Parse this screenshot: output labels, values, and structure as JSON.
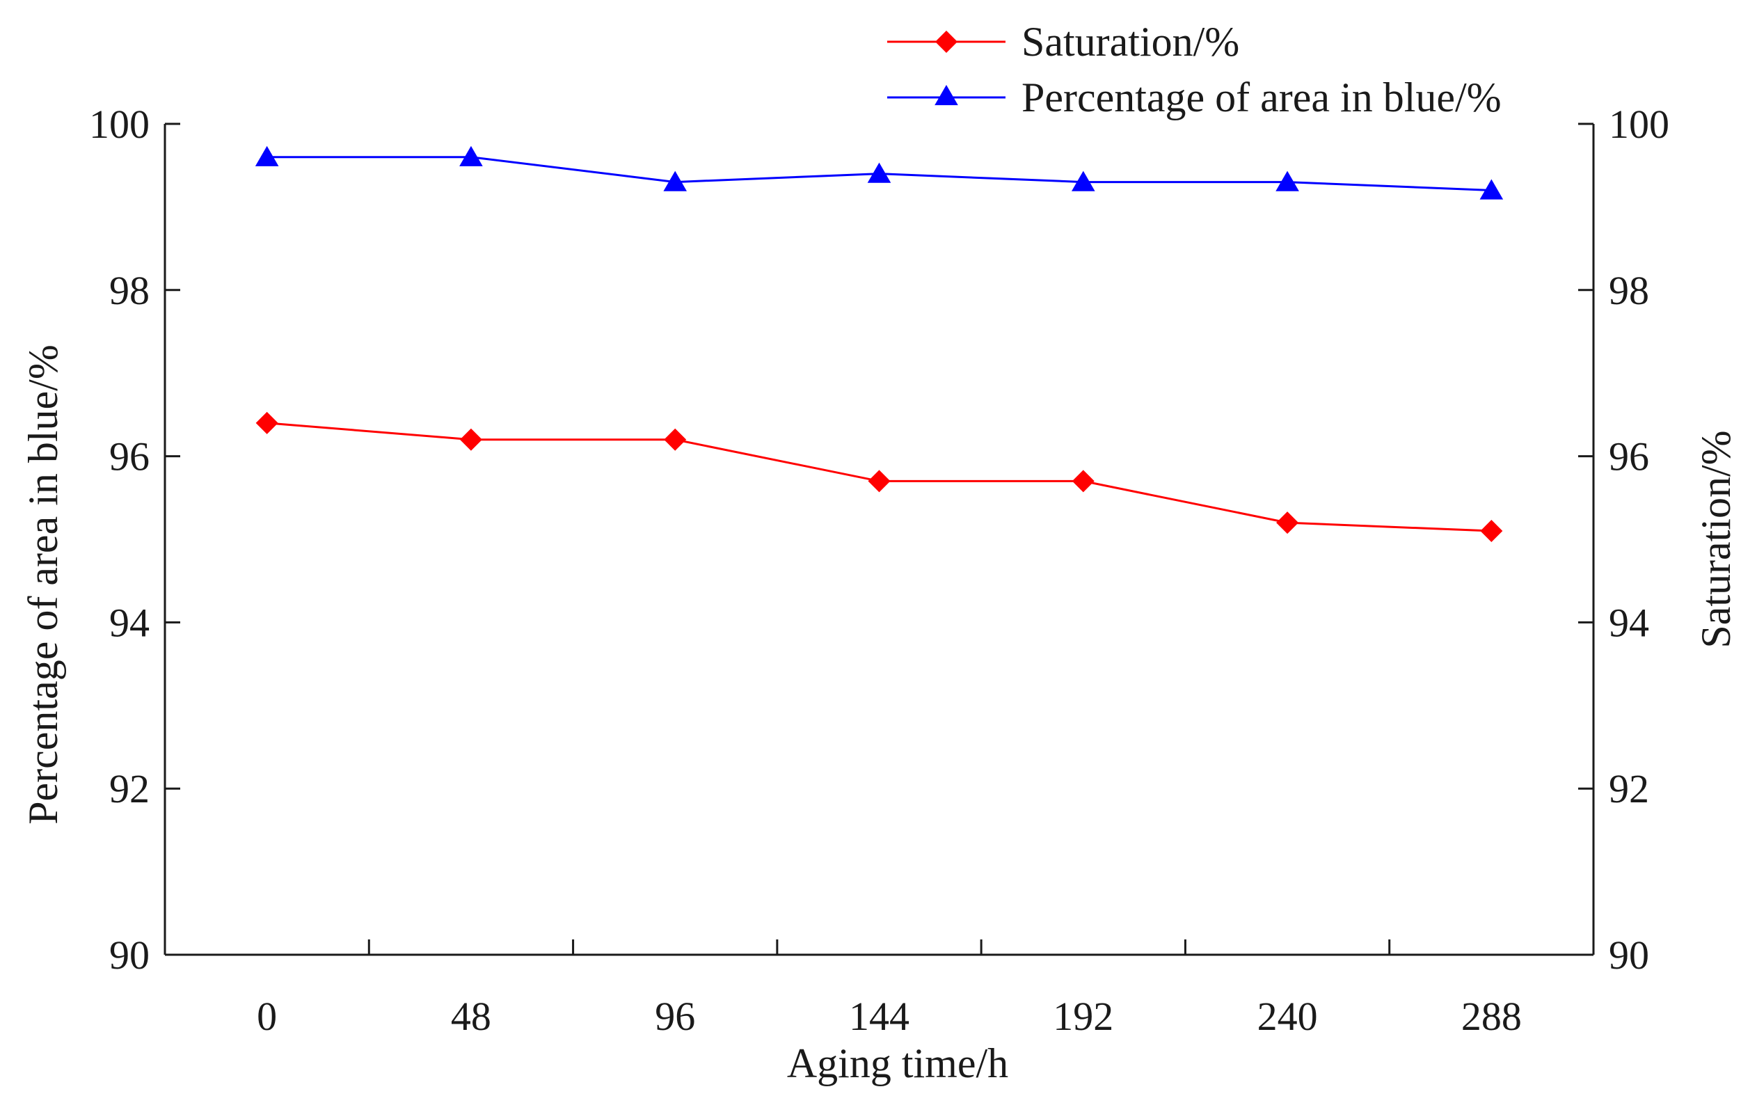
{
  "chart_data": {
    "type": "line",
    "title": "",
    "xlabel": "Aging time/h",
    "ylabel_left": "Percentage of area in blue/%",
    "ylabel_right": "Saturation/%",
    "categories": [
      "0",
      "48",
      "96",
      "144",
      "192",
      "240",
      "288"
    ],
    "ylim_left": [
      90,
      100
    ],
    "ylim_right": [
      90,
      100
    ],
    "yticks_left": [
      "90",
      "92",
      "94",
      "96",
      "98",
      "100"
    ],
    "yticks_right": [
      "90",
      "92",
      "94",
      "96",
      "98",
      "100"
    ],
    "grid": false,
    "legend_position": "top-right",
    "series": [
      {
        "name": "Saturation/%",
        "color": "#ff0000",
        "marker": "diamond",
        "values": [
          96.4,
          96.2,
          96.2,
          95.7,
          95.7,
          95.2,
          95.1
        ]
      },
      {
        "name": "Percentage of area in blue/%",
        "color": "#0000ff",
        "marker": "triangle",
        "values": [
          99.6,
          99.6,
          99.3,
          99.4,
          99.3,
          99.3,
          99.2
        ]
      }
    ]
  }
}
